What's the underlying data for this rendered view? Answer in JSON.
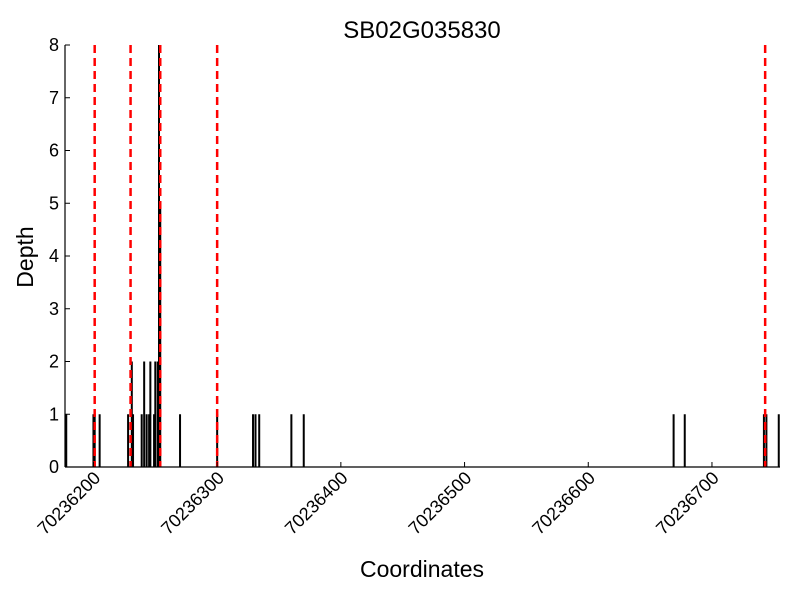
{
  "chart_data": {
    "type": "bar",
    "title": "SB02G035830",
    "xlabel": "Coordinates",
    "ylabel": "Depth",
    "xlim": [
      70236177,
      70236755
    ],
    "ylim": [
      0,
      8
    ],
    "grid": false,
    "x_ticks": [
      70236200,
      70236300,
      70236400,
      70236500,
      70236600,
      70236700
    ],
    "x_tick_labels": [
      "70236200",
      "70236300",
      "70236400",
      "70236500",
      "70236600",
      "70236700"
    ],
    "y_ticks": [
      0,
      1,
      2,
      3,
      4,
      5,
      6,
      7,
      8
    ],
    "y_tick_labels": [
      "0",
      "1",
      "2",
      "3",
      "4",
      "5",
      "6",
      "7",
      "8"
    ],
    "series": [
      {
        "x": [
          70236178,
          70236200,
          70236201,
          70236205,
          70236228,
          70236231,
          70236232,
          70236239,
          70236241,
          70236243,
          70236245,
          70236246,
          70236249,
          70236250,
          70236252,
          70236253,
          70236254,
          70236270,
          70236300,
          70236329,
          70236331,
          70236334,
          70236360,
          70236370,
          70236669,
          70236678,
          70236742,
          70236744,
          70236754
        ],
        "values": [
          1,
          1,
          1,
          1,
          1,
          2,
          1,
          1,
          2,
          1,
          1,
          2,
          1,
          2,
          2,
          8,
          5,
          1,
          1,
          1,
          1,
          1,
          1,
          1,
          1,
          1,
          1,
          1,
          1
        ]
      }
    ],
    "vlines": [
      70236201,
      70236230,
      70236254,
      70236300,
      70236743
    ],
    "vline_color": "#ff0000",
    "bar_color": "#000000"
  }
}
